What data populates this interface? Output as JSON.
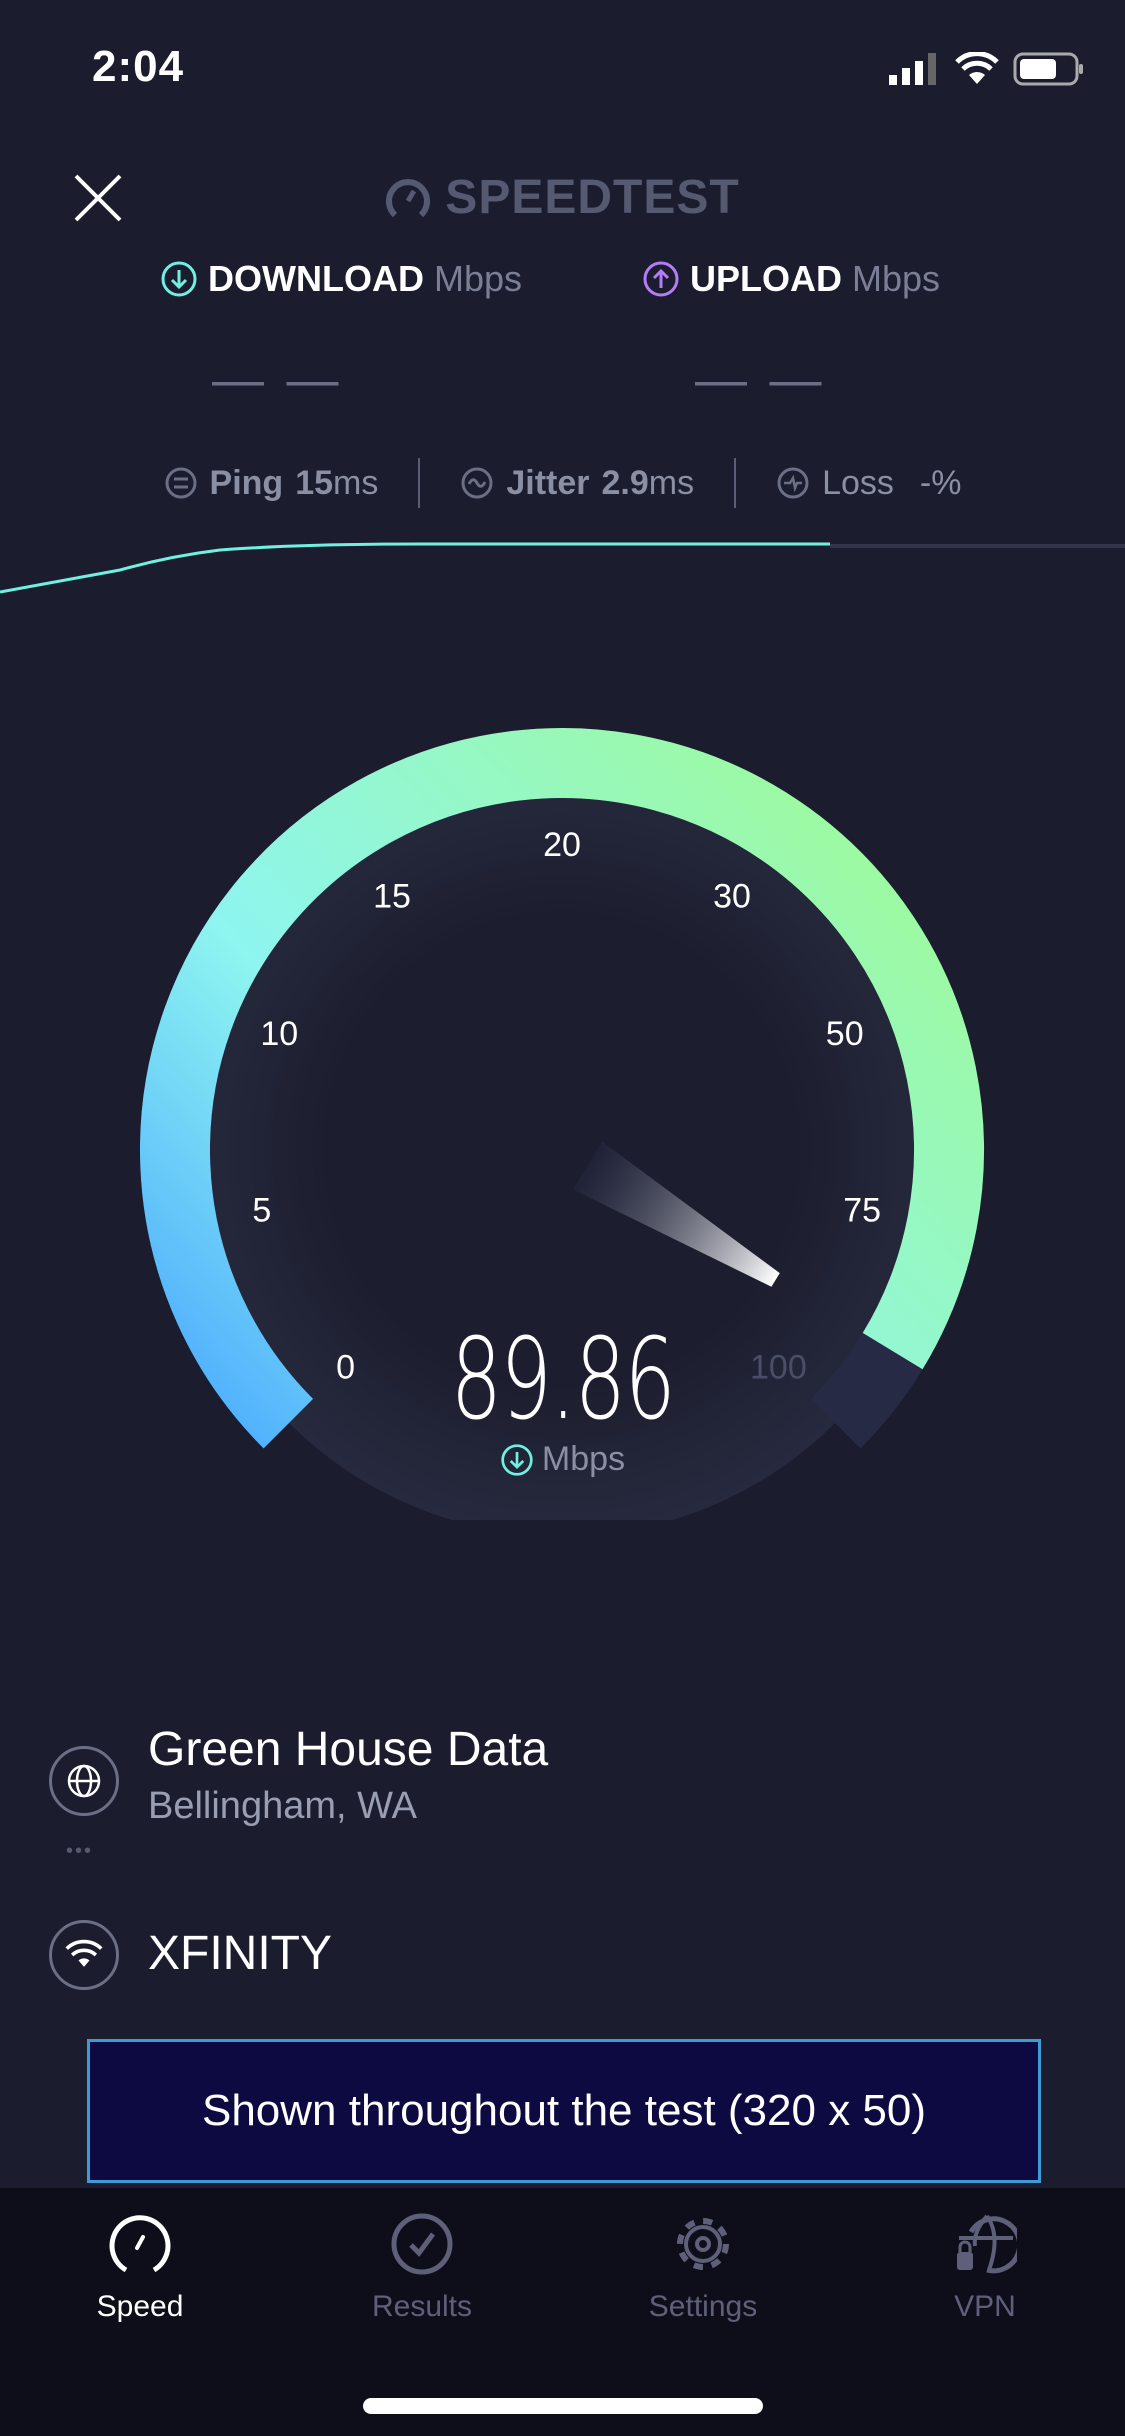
{
  "status": {
    "time": "2:04"
  },
  "header": {
    "brand": "SPEEDTEST"
  },
  "download": {
    "label": "DOWNLOAD",
    "unit": "Mbps",
    "value": "— —",
    "color": "#6ff0e0"
  },
  "upload": {
    "label": "UPLOAD",
    "unit": "Mbps",
    "value": "— —",
    "color": "#b57cf5"
  },
  "metrics": {
    "ping_label": "Ping",
    "ping_value": "15",
    "ping_unit": "ms",
    "jitter_label": "Jitter",
    "jitter_value": "2.9",
    "jitter_unit": "ms",
    "loss_label": "Loss",
    "loss_value": "-%"
  },
  "gauge": {
    "ticks": [
      "0",
      "5",
      "10",
      "15",
      "20",
      "30",
      "50",
      "75",
      "100"
    ],
    "value": 89.86,
    "value_text": "89.86",
    "unit": "Mbps"
  },
  "server": {
    "name": "Green House Data",
    "location": "Bellingham, WA"
  },
  "isp": {
    "name": "XFINITY"
  },
  "ad": {
    "text": "Shown throughout the test (320 x 50)"
  },
  "tabs": [
    {
      "label": "Speed",
      "active": true
    },
    {
      "label": "Results"
    },
    {
      "label": "Settings"
    },
    {
      "label": "VPN"
    }
  ]
}
